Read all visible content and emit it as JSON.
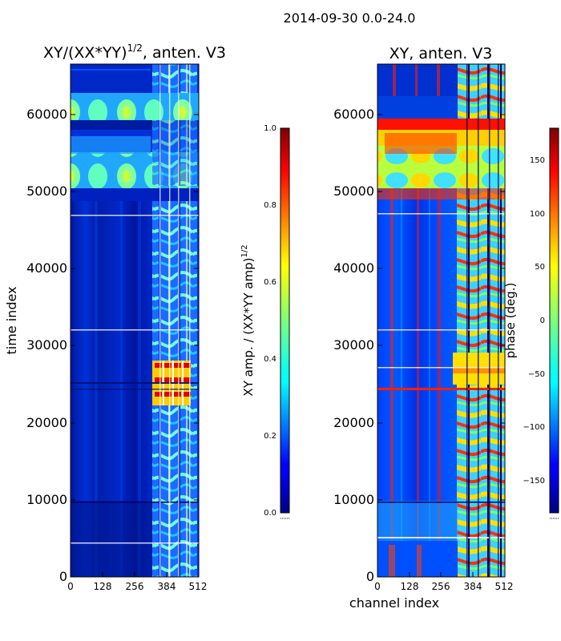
{
  "figure": {
    "suptitle": "2014-09-30 0.0-24.0"
  },
  "colors": {
    "jet_dark_blue": "#00007f",
    "jet_blue": "#0000ff",
    "jet_cyan": "#00ffff",
    "jet_yellow": "#ffff00",
    "jet_red": "#ff0000",
    "jet_dark_red": "#7f0000"
  },
  "chart_data": [
    {
      "type": "heatmap",
      "title_main": "XY/(XX*YY)",
      "title_exp": "1/2",
      "title_tail": ", anten. V3",
      "xlabel": "",
      "ylabel": "time index",
      "xticks": [
        0,
        128,
        256,
        384,
        512
      ],
      "yticks": [
        0,
        10000,
        20000,
        30000,
        40000,
        50000,
        60000
      ],
      "xlim": [
        0,
        512
      ],
      "ylim": [
        0,
        66500
      ],
      "colormap": "jet",
      "colorbar": {
        "label_main": "XY amp. / (XX*YY amp)",
        "label_exp": "1/2",
        "range": [
          0,
          1
        ],
        "ticks": [
          0.0,
          0.2,
          0.4,
          0.6,
          0.8,
          1.0
        ],
        "ticklabels": [
          "0.0",
          "0.2",
          "0.4",
          "0.6",
          "0.8",
          "1.0"
        ]
      },
      "regions": [
        {
          "x": [
            0,
            325
          ],
          "y": [
            0,
            50000
          ],
          "value": 0.12
        },
        {
          "x": [
            325,
            512
          ],
          "y": [
            0,
            50000
          ],
          "value": 0.33
        },
        {
          "x": [
            325,
            480
          ],
          "y": [
            22000,
            28000
          ],
          "value": 0.85
        },
        {
          "x": [
            0,
            512
          ],
          "y": [
            51000,
            56000
          ],
          "value": 0.45
        },
        {
          "x": [
            0,
            512
          ],
          "y": [
            56000,
            59000
          ],
          "value": 0.2
        },
        {
          "x": [
            0,
            512
          ],
          "y": [
            59500,
            63000
          ],
          "value": 0.42
        },
        {
          "x": [
            0,
            512
          ],
          "y": [
            63000,
            66500
          ],
          "value": 0.15
        }
      ]
    },
    {
      "type": "heatmap",
      "title_main": "XY, anten. V3",
      "xlabel": "channel index",
      "ylabel": "",
      "xticks": [
        0,
        128,
        256,
        384,
        512
      ],
      "yticks": [
        0,
        10000,
        20000,
        30000,
        40000,
        50000,
        60000
      ],
      "xlim": [
        0,
        512
      ],
      "ylim": [
        0,
        66500
      ],
      "colormap": "jet",
      "colorbar": {
        "label_main": "phase (deg.)",
        "range": [
          -180,
          180
        ],
        "ticks": [
          -150,
          -100,
          -50,
          0,
          50,
          100,
          150
        ],
        "ticklabels": [
          "−150",
          "−100",
          "−50",
          "0",
          "50",
          "100",
          "150"
        ]
      },
      "regions": [
        {
          "x": [
            0,
            512
          ],
          "y": [
            0,
            50000
          ],
          "value": -130
        },
        {
          "x": [
            325,
            512
          ],
          "y": [
            0,
            50000
          ],
          "value": 40
        },
        {
          "x": [
            325,
            512
          ],
          "y": [
            23000,
            29000
          ],
          "value": 80
        },
        {
          "x": [
            0,
            512
          ],
          "y": [
            51000,
            59000
          ],
          "value": 30
        },
        {
          "x": [
            0,
            512
          ],
          "y": [
            59000,
            61000
          ],
          "value": 160
        },
        {
          "x": [
            0,
            512
          ],
          "y": [
            61000,
            66500
          ],
          "value": -140
        }
      ]
    }
  ]
}
